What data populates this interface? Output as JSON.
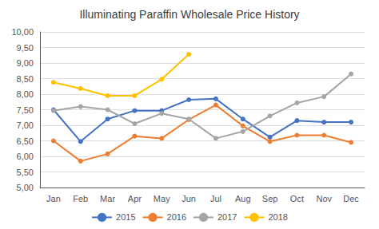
{
  "chart_data": {
    "type": "line",
    "title": "Illuminating Paraffin Wholesale Price History",
    "categories": [
      "Jan",
      "Feb",
      "Mar",
      "Apr",
      "May",
      "Jun",
      "Jul",
      "Aug",
      "Sep",
      "Oct",
      "Nov",
      "Dec"
    ],
    "series": [
      {
        "name": "2015",
        "color": "#4472C4",
        "values": [
          7.5,
          6.48,
          7.2,
          7.47,
          7.47,
          7.82,
          7.85,
          7.2,
          6.62,
          7.15,
          7.1,
          7.1
        ]
      },
      {
        "name": "2016",
        "color": "#ED7D31",
        "values": [
          6.5,
          5.85,
          6.08,
          6.65,
          6.58,
          7.18,
          7.65,
          6.98,
          6.48,
          6.68,
          6.68,
          6.45
        ]
      },
      {
        "name": "2017",
        "color": "#A5A5A5",
        "values": [
          7.47,
          7.6,
          7.5,
          7.05,
          7.38,
          7.2,
          6.58,
          6.8,
          7.3,
          7.72,
          7.92,
          8.65
        ]
      },
      {
        "name": "2018",
        "color": "#FFC000",
        "values": [
          8.38,
          8.18,
          7.95,
          7.95,
          8.48,
          9.28,
          null,
          null,
          null,
          null,
          null,
          null
        ]
      }
    ],
    "ylim": [
      5.0,
      10.0
    ],
    "yticks": [
      {
        "value": 5.0,
        "label": "5,00"
      },
      {
        "value": 5.5,
        "label": "5,50"
      },
      {
        "value": 6.0,
        "label": "6,00"
      },
      {
        "value": 6.5,
        "label": "6,50"
      },
      {
        "value": 7.0,
        "label": "7,00"
      },
      {
        "value": 7.5,
        "label": "7,50"
      },
      {
        "value": 8.0,
        "label": "8,00"
      },
      {
        "value": 8.5,
        "label": "8,50"
      },
      {
        "value": 9.0,
        "label": "9,00"
      },
      {
        "value": 9.5,
        "label": "9,50"
      },
      {
        "value": 10.0,
        "label": "10,00"
      }
    ],
    "grid": true,
    "legend": "bottom",
    "marker": "circle"
  }
}
